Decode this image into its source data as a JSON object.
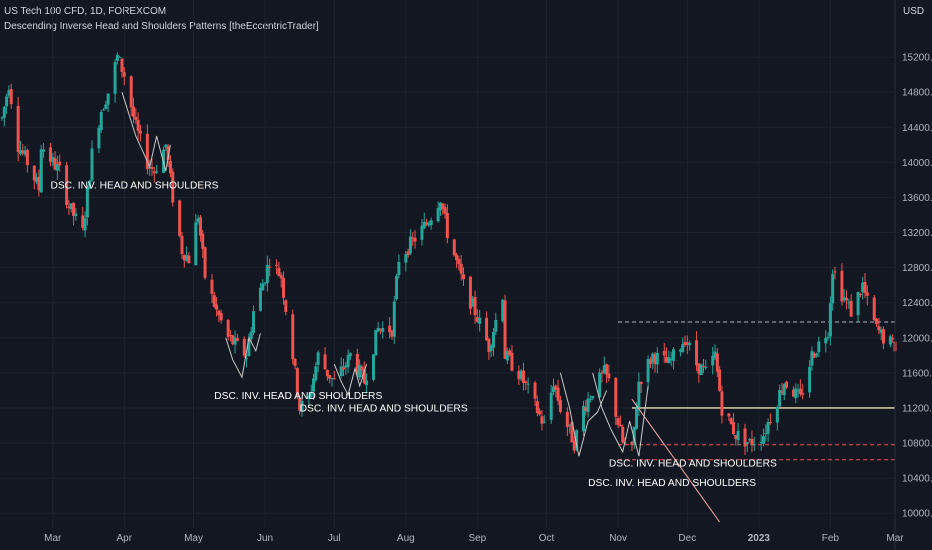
{
  "header": {
    "symbol_line": "US Tech 100 CFD, 1D, FOREXCOM",
    "indicator_line": "Descending Inverse Head and Shoulders Patterns [theEccentricTrader]",
    "currency": "USD"
  },
  "colors": {
    "background": "#131722",
    "grid": "#1e222d",
    "up": "#26a69a",
    "down": "#ef5350",
    "text": "#d1d4dc",
    "axis_text": "#b2b5be",
    "neckline": "#c9c39c",
    "pattern_line": "#c8c8c8"
  },
  "chart_data": {
    "type": "candlestick",
    "symbol": "US Tech 100 CFD",
    "timeframe": "1D",
    "x_start": "2022-02-07",
    "x_end": "2023-03-01",
    "ylim": [
      9900,
      15600
    ],
    "y_ticks": [
      10000,
      10400,
      10800,
      11200,
      11600,
      12000,
      12400,
      12800,
      13200,
      13600,
      14000,
      14400,
      14800,
      15200
    ],
    "y_tick_labels": [
      "10000.0",
      "10400.0",
      "10800.0",
      "11200.0",
      "11600.0",
      "12000.0",
      "12400.0",
      "12800.0",
      "13200.0",
      "13600.0",
      "14000.0",
      "14400.0",
      "14800.0",
      "15200.0"
    ],
    "x_ticks": [
      {
        "date": "2022-03-01",
        "label": "Mar"
      },
      {
        "date": "2022-04-01",
        "label": "Apr"
      },
      {
        "date": "2022-05-01",
        "label": "May"
      },
      {
        "date": "2022-06-01",
        "label": "Jun"
      },
      {
        "date": "2022-07-01",
        "label": "Jul"
      },
      {
        "date": "2022-08-01",
        "label": "Aug"
      },
      {
        "date": "2022-09-01",
        "label": "Sep"
      },
      {
        "date": "2022-10-01",
        "label": "Oct"
      },
      {
        "date": "2022-11-01",
        "label": "Nov"
      },
      {
        "date": "2022-12-01",
        "label": "Dec"
      },
      {
        "date": "2023-01-01",
        "label": "2023"
      },
      {
        "date": "2023-02-01",
        "label": "Feb"
      },
      {
        "date": "2023-03-01",
        "label": "Mar"
      }
    ],
    "close_path": [
      [
        "2022-02-07",
        14500
      ],
      [
        "2022-02-10",
        14900
      ],
      [
        "2022-02-14",
        14200
      ],
      [
        "2022-02-18",
        14000
      ],
      [
        "2022-02-23",
        13700
      ],
      [
        "2022-02-24",
        14200
      ],
      [
        "2022-03-01",
        14000
      ],
      [
        "2022-03-04",
        13900
      ],
      [
        "2022-03-08",
        13500
      ],
      [
        "2022-03-14",
        13200
      ],
      [
        "2022-03-18",
        14100
      ],
      [
        "2022-03-22",
        14600
      ],
      [
        "2022-03-25",
        14800
      ],
      [
        "2022-03-29",
        15200
      ],
      [
        "2022-04-01",
        15000
      ],
      [
        "2022-04-06",
        14400
      ],
      [
        "2022-04-11",
        14000
      ],
      [
        "2022-04-14",
        13900
      ],
      [
        "2022-04-19",
        14200
      ],
      [
        "2022-04-22",
        13600
      ],
      [
        "2022-04-26",
        13000
      ],
      [
        "2022-04-29",
        12900
      ],
      [
        "2022-05-03",
        13400
      ],
      [
        "2022-05-06",
        12700
      ],
      [
        "2022-05-11",
        12300
      ],
      [
        "2022-05-16",
        12000
      ],
      [
        "2022-05-20",
        11900
      ],
      [
        "2022-05-24",
        11800
      ],
      [
        "2022-05-27",
        12300
      ],
      [
        "2022-06-01",
        12700
      ],
      [
        "2022-06-03",
        12900
      ],
      [
        "2022-06-08",
        12700
      ],
      [
        "2022-06-13",
        11800
      ],
      [
        "2022-06-16",
        11200
      ],
      [
        "2022-06-20",
        11300
      ],
      [
        "2022-06-24",
        11800
      ],
      [
        "2022-06-28",
        11600
      ],
      [
        "2022-07-01",
        11500
      ],
      [
        "2022-07-06",
        11700
      ],
      [
        "2022-07-08",
        11800
      ],
      [
        "2022-07-14",
        11500
      ],
      [
        "2022-07-20",
        12100
      ],
      [
        "2022-07-26",
        12100
      ],
      [
        "2022-07-29",
        12900
      ],
      [
        "2022-08-04",
        13100
      ],
      [
        "2022-08-10",
        13300
      ],
      [
        "2022-08-16",
        13600
      ],
      [
        "2022-08-19",
        13200
      ],
      [
        "2022-08-26",
        12600
      ],
      [
        "2022-08-31",
        12300
      ],
      [
        "2022-09-06",
        11900
      ],
      [
        "2022-09-12",
        12500
      ],
      [
        "2022-09-13",
        11800
      ],
      [
        "2022-09-19",
        11600
      ],
      [
        "2022-09-23",
        11400
      ],
      [
        "2022-09-30",
        11000
      ],
      [
        "2022-10-04",
        11500
      ],
      [
        "2022-10-07",
        11200
      ],
      [
        "2022-10-13",
        10800
      ],
      [
        "2022-10-17",
        11200
      ],
      [
        "2022-10-21",
        11400
      ],
      [
        "2022-10-26",
        11600
      ],
      [
        "2022-10-28",
        11500
      ],
      [
        "2022-11-03",
        10800
      ],
      [
        "2022-11-07",
        10700
      ],
      [
        "2022-11-10",
        11500
      ],
      [
        "2022-11-16",
        11800
      ],
      [
        "2022-11-23",
        11700
      ],
      [
        "2022-11-30",
        12000
      ],
      [
        "2022-12-05",
        11700
      ],
      [
        "2022-12-09",
        11600
      ],
      [
        "2022-12-13",
        11800
      ],
      [
        "2022-12-16",
        11200
      ],
      [
        "2022-12-22",
        10900
      ],
      [
        "2022-12-28",
        10800
      ],
      [
        "2023-01-03",
        10900
      ],
      [
        "2023-01-06",
        11100
      ],
      [
        "2023-01-12",
        11500
      ],
      [
        "2023-01-19",
        11300
      ],
      [
        "2023-01-24",
        11800
      ],
      [
        "2023-01-31",
        12100
      ],
      [
        "2023-02-02",
        12800
      ],
      [
        "2023-02-06",
        12500
      ],
      [
        "2023-02-10",
        12300
      ],
      [
        "2023-02-15",
        12600
      ],
      [
        "2023-02-17",
        12400
      ],
      [
        "2023-02-21",
        12100
      ],
      [
        "2023-02-24",
        12000
      ],
      [
        "2023-03-01",
        11900
      ]
    ],
    "horizontal_levels": [
      {
        "price": 12180,
        "from": "2022-11-01",
        "to": "2023-03-01",
        "style": "dashed",
        "color": "#b2b5be"
      },
      {
        "price": 11200,
        "from": "2022-11-07",
        "to": "2023-03-01",
        "style": "solid",
        "color": "#c9c39c"
      },
      {
        "price": 10780,
        "from": "2022-11-01",
        "to": "2023-03-01",
        "style": "dashed",
        "color": "#ef5350"
      },
      {
        "price": 10610,
        "from": "2022-11-01",
        "to": "2023-03-01",
        "style": "dashed",
        "color": "#ef5350"
      }
    ],
    "trend_line": {
      "from": [
        "2022-11-07",
        11300
      ],
      "to": [
        "2022-12-15",
        9900
      ],
      "color": "#f7a8a8"
    },
    "patterns": [
      {
        "label": "DSC. INV. HEAD AND SHOULDERS",
        "label_at": [
          "2022-02-28",
          13700
        ],
        "points": [
          [
            "2022-03-31",
            14800
          ],
          [
            "2022-04-06",
            14300
          ],
          [
            "2022-04-12",
            13950
          ],
          [
            "2022-04-15",
            14300
          ],
          [
            "2022-04-19",
            13900
          ],
          [
            "2022-04-21",
            14200
          ]
        ]
      },
      {
        "label": "DSC. INV. HEAD AND SHOULDERS",
        "label_at": [
          "2022-05-10",
          11300
        ],
        "points": [
          [
            "2022-05-15",
            12000
          ],
          [
            "2022-05-18",
            11750
          ],
          [
            "2022-05-22",
            11550
          ],
          [
            "2022-05-25",
            12000
          ],
          [
            "2022-05-28",
            11850
          ],
          [
            "2022-05-30",
            12050
          ]
        ]
      },
      {
        "label": "DSC. INV. HEAD AND SHOULDERS",
        "label_at": [
          "2022-06-16",
          11160
        ],
        "points": [
          [
            "2022-07-01",
            11700
          ],
          [
            "2022-07-04",
            11500
          ],
          [
            "2022-07-07",
            11350
          ],
          [
            "2022-07-10",
            11650
          ],
          [
            "2022-07-12",
            11450
          ],
          [
            "2022-07-15",
            11700
          ]
        ]
      },
      {
        "label": "DSC. INV. HEAD AND SHOULDERS",
        "label_at": [
          "2022-10-19",
          10310
        ],
        "points": [
          [
            "2022-10-07",
            11600
          ],
          [
            "2022-10-11",
            11200
          ],
          [
            "2022-10-15",
            10650
          ],
          [
            "2022-10-19",
            11050
          ],
          [
            "2022-10-23",
            11150
          ],
          [
            "2022-10-27",
            11400
          ]
        ]
      },
      {
        "label": "DSC. INV. HEAD AND SHOULDERS",
        "label_at": [
          "2022-10-28",
          10530
        ],
        "points": [
          [
            "2022-10-21",
            11600
          ],
          [
            "2022-10-25",
            11200
          ],
          [
            "2022-10-29",
            10950
          ],
          [
            "2022-11-03",
            10700
          ],
          [
            "2022-11-06",
            11050
          ],
          [
            "2022-11-10",
            10650
          ],
          [
            "2022-11-14",
            11450
          ]
        ]
      }
    ]
  }
}
